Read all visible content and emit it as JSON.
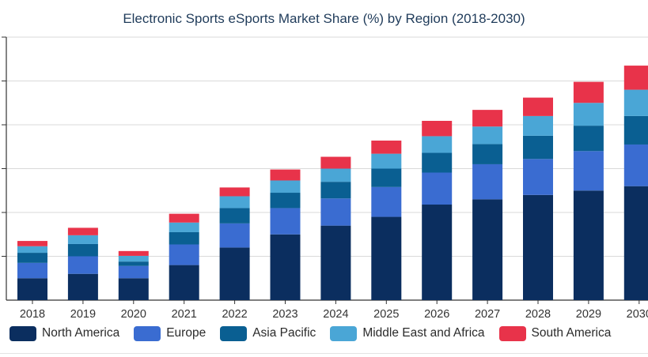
{
  "chart_data": {
    "type": "bar",
    "stacked": true,
    "title": "Electronic Sports eSports Market Share (%) by Region (2018-2030)",
    "categories": [
      "2018",
      "2019",
      "2020",
      "2021",
      "2022",
      "2023",
      "2024",
      "2025",
      "2026",
      "2027",
      "2028",
      "2029",
      "2030"
    ],
    "ylim": [
      0,
      6
    ],
    "grid": true,
    "legend_position": "bottom",
    "series": [
      {
        "name": "North America",
        "color": "#0b2e5f",
        "values": [
          0.5,
          0.6,
          0.5,
          0.8,
          1.2,
          1.5,
          1.7,
          1.9,
          2.18,
          2.3,
          2.4,
          2.5,
          2.6
        ]
      },
      {
        "name": "Europe",
        "color": "#3a6cd1",
        "values": [
          0.35,
          0.4,
          0.28,
          0.47,
          0.55,
          0.6,
          0.62,
          0.68,
          0.73,
          0.8,
          0.82,
          0.9,
          0.95
        ]
      },
      {
        "name": "Asia Pacific",
        "color": "#0a5f92",
        "values": [
          0.23,
          0.28,
          0.1,
          0.28,
          0.35,
          0.35,
          0.38,
          0.42,
          0.45,
          0.46,
          0.53,
          0.58,
          0.65
        ]
      },
      {
        "name": "Middle East and Africa",
        "color": "#4aa6d6",
        "values": [
          0.15,
          0.2,
          0.13,
          0.22,
          0.27,
          0.28,
          0.3,
          0.34,
          0.38,
          0.4,
          0.45,
          0.52,
          0.6
        ]
      },
      {
        "name": "South America",
        "color": "#e8334a",
        "values": [
          0.12,
          0.17,
          0.11,
          0.2,
          0.2,
          0.25,
          0.27,
          0.3,
          0.35,
          0.38,
          0.42,
          0.48,
          0.55
        ]
      }
    ]
  }
}
